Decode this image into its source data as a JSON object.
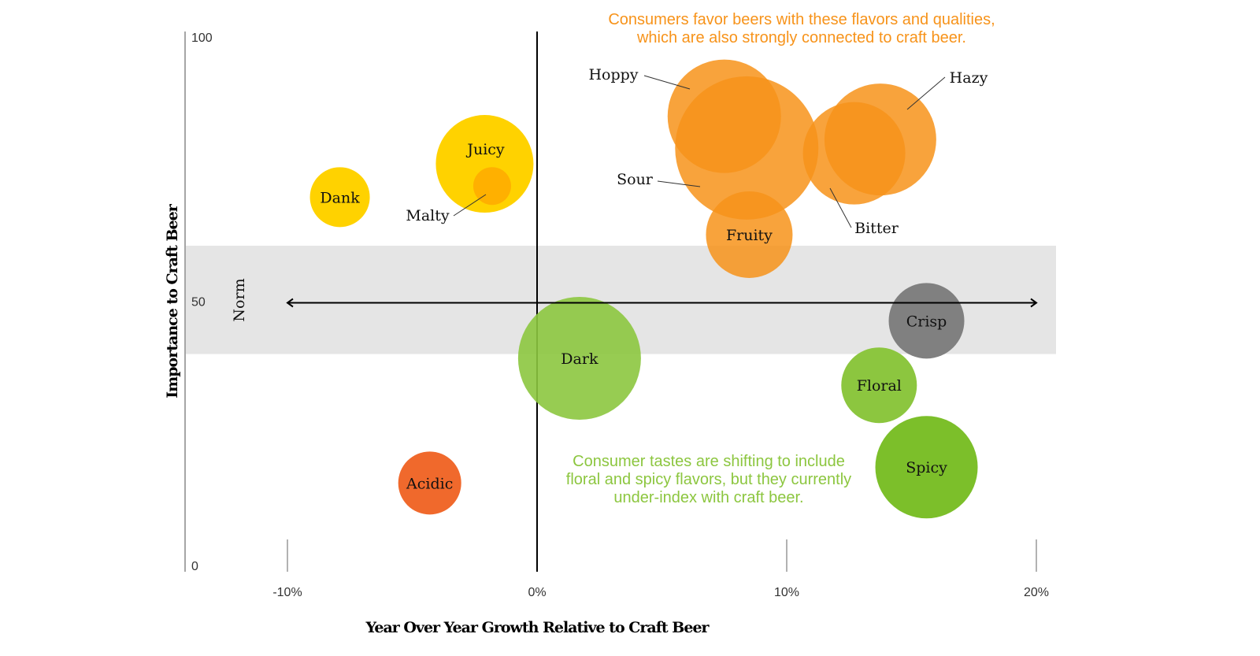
{
  "chart_data": {
    "type": "scatter",
    "subtype": "bubble",
    "xlabel": "Year Over Year Growth Relative to Craft Beer",
    "ylabel": "Importance to Craft Beer",
    "xlim": [
      -14,
      21
    ],
    "ylim": [
      0,
      100
    ],
    "x_ticks": [
      {
        "value": -10,
        "label": "-10%"
      },
      {
        "value": 0,
        "label": "0%"
      },
      {
        "value": 10,
        "label": "10%"
      },
      {
        "value": 20,
        "label": "20%"
      }
    ],
    "y_ticks": [
      {
        "value": 100,
        "label": "100"
      },
      {
        "value": 50,
        "label": "50"
      },
      {
        "value": 0,
        "label": "0"
      }
    ],
    "grid": false,
    "norm_band": {
      "label": "Norm",
      "y_range": [
        40,
        60.5
      ],
      "color": "#e5e5e5",
      "arrow_x_range": [
        -10,
        20
      ],
      "arrow_y": 50
    },
    "points": [
      {
        "label": "Dank",
        "x": -7.9,
        "y": 69.7,
        "size": 3.8,
        "color": "#ffd200"
      },
      {
        "label": "Juicy",
        "x": -2.1,
        "y": 76.0,
        "size": 6.2,
        "color": "#ffd200"
      },
      {
        "label": "Malty",
        "x": -1.8,
        "y": 71.8,
        "size": 2.4,
        "color": "#ffb000"
      },
      {
        "label": "Sour",
        "x": 8.4,
        "y": 79.0,
        "size": 9.1,
        "color": "#f7931a"
      },
      {
        "label": "Hoppy",
        "x": 7.5,
        "y": 85.0,
        "size": 7.2,
        "color": "#f7931a"
      },
      {
        "label": "Hazy",
        "x": 13.75,
        "y": 80.6,
        "size": 7.1,
        "color": "#f7931a"
      },
      {
        "label": "Bitter",
        "x": 12.7,
        "y": 78.0,
        "size": 6.5,
        "color": "#f7931a"
      },
      {
        "label": "Fruity",
        "x": 8.5,
        "y": 62.6,
        "size": 5.5,
        "color": "#f7931a"
      },
      {
        "label": "Crisp",
        "x": 15.6,
        "y": 46.3,
        "size": 4.8,
        "color": "#808080"
      },
      {
        "label": "Dark",
        "x": 1.7,
        "y": 39.2,
        "size": 7.8,
        "color": "#8cc63f"
      },
      {
        "label": "Floral",
        "x": 13.7,
        "y": 34.1,
        "size": 4.8,
        "color": "#8cc63f"
      },
      {
        "label": "Spicy",
        "x": 15.6,
        "y": 18.6,
        "size": 6.5,
        "color": "#7cbf2a"
      },
      {
        "label": "Acidic",
        "x": -4.3,
        "y": 15.6,
        "size": 4.0,
        "color": "#f0692c"
      }
    ],
    "annotations": [
      {
        "lines": [
          "Consumers favor beers with these flavors and qualities,",
          "which are also strongly connected to craft beer."
        ],
        "color": "#f7931a"
      },
      {
        "lines": [
          "Consumer tastes are shifting to include",
          "floral and spicy flavors, but they currently",
          "under-index with craft beer."
        ],
        "color": "#8cc63f"
      }
    ]
  }
}
